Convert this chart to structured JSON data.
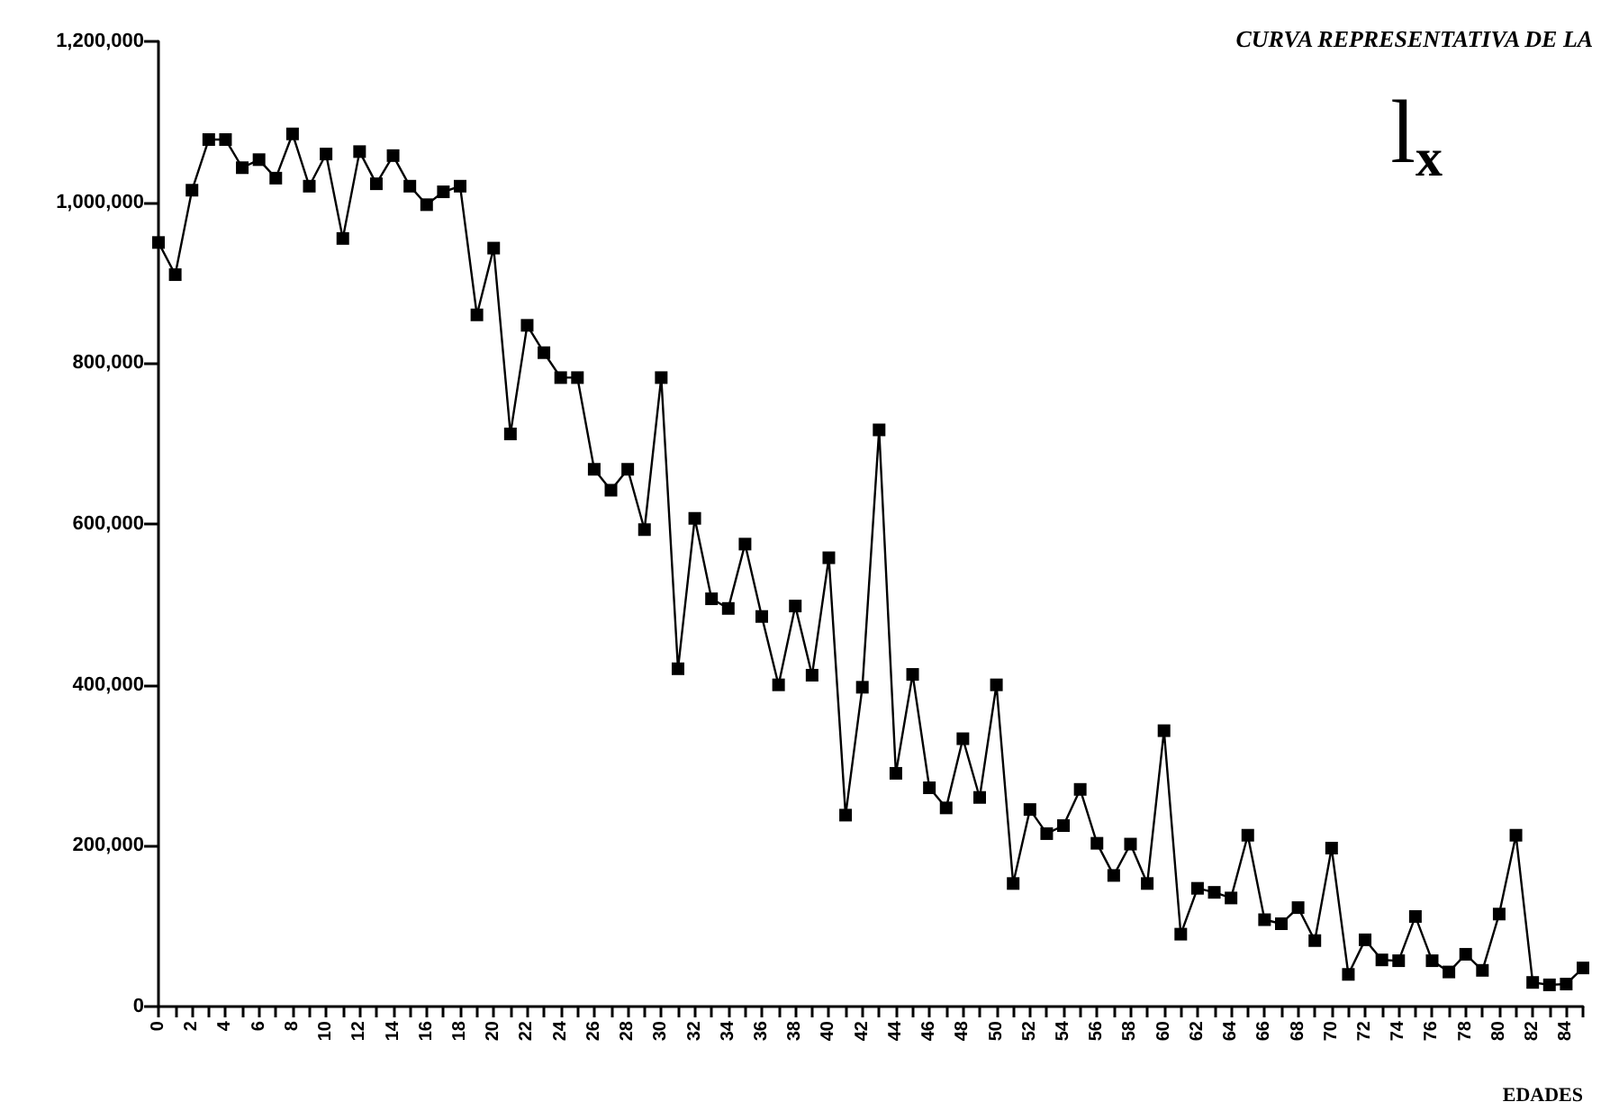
{
  "chart_data": {
    "type": "line",
    "title": "CURVA REPRESENTATIVA DE LA",
    "xlabel": "EDADES",
    "annotations": [
      "l$_{x}$"
    ],
    "categories": [
      "0",
      null,
      "2",
      null,
      "4",
      null,
      "6",
      null,
      "8",
      null,
      "10",
      null,
      "12",
      null,
      "14",
      null,
      "16",
      null,
      "18",
      null,
      "20",
      null,
      "22",
      null,
      "24",
      null,
      "26",
      null,
      "28",
      null,
      "30",
      null,
      "32",
      null,
      "34",
      null,
      "36",
      null,
      "38",
      null,
      "40",
      null,
      "42",
      null,
      "44",
      null,
      "46",
      null,
      "48",
      null,
      "50",
      null,
      "52",
      null,
      "54",
      null,
      "56",
      null,
      "58",
      null,
      "60",
      null,
      "62",
      null,
      "64",
      null,
      "66",
      null,
      "68",
      null,
      "70",
      null,
      "72",
      null,
      "74",
      null,
      "76",
      null,
      "78",
      null,
      "80",
      null,
      "82",
      null,
      "84",
      null
    ],
    "series": [
      {
        "color": "#000000",
        "values": [
          950000,
          910000,
          1015000,
          1078000,
          1078000,
          1043000,
          1053000,
          1030000,
          1085000,
          1020000,
          1060000,
          955000,
          1063000,
          1023000,
          1058000,
          1020000,
          997000,
          1013000,
          1020000,
          860000,
          943000,
          712000,
          847000,
          813000,
          782000,
          782000,
          668000,
          642000,
          668000,
          593000,
          782000,
          420000,
          607000,
          507000,
          495000,
          575000,
          485000,
          400000,
          498000,
          412000,
          558000,
          238000,
          397000,
          717000,
          290000,
          413000,
          272000,
          247000,
          333000,
          260000,
          400000,
          153000,
          245000,
          215000,
          225000,
          270000,
          203000,
          163000,
          202000,
          153000,
          343000,
          90000,
          147000,
          142000,
          135000,
          213000,
          108000,
          103000,
          123000,
          82000,
          197000,
          40000,
          83000,
          58000,
          57000,
          112000,
          57000,
          43000,
          65000,
          45000,
          115000,
          213000,
          30000,
          27000,
          28000,
          48000
        ]
      }
    ],
    "ylim": [
      0,
      1200000
    ],
    "yticks": [
      0,
      {
        "value": 200000,
        "label": "200,000"
      },
      {
        "value": 400000,
        "label": "400,000"
      },
      {
        "value": 600000,
        "label": "600,000"
      },
      {
        "value": 800000,
        "label": "800,000"
      },
      {
        "value": 1000000,
        "label": "1,000,000"
      },
      {
        "value": 1200000,
        "label": "1,200,000"
      }
    ],
    "grid": false,
    "marker": "square",
    "line_style": "solid"
  }
}
